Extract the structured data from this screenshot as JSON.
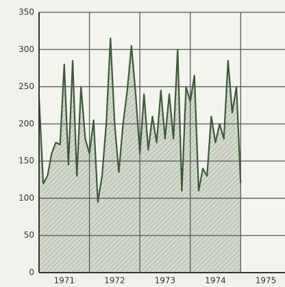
{
  "chart_data": {
    "type": "area",
    "x": [
      1971,
      1971.083,
      1971.167,
      1971.25,
      1971.333,
      1971.417,
      1971.5,
      1971.583,
      1971.667,
      1971.75,
      1971.833,
      1971.917,
      1972,
      1972.083,
      1972.167,
      1972.25,
      1972.333,
      1972.417,
      1972.5,
      1972.583,
      1972.667,
      1972.75,
      1972.833,
      1972.917,
      1973,
      1973.083,
      1973.167,
      1973.25,
      1973.333,
      1973.417,
      1973.5,
      1973.583,
      1973.667,
      1973.75,
      1973.833,
      1973.917,
      1974,
      1974.083,
      1974.167,
      1974.25,
      1974.333,
      1974.417,
      1974.5,
      1974.583,
      1974.667,
      1974.75,
      1974.833,
      1974.917,
      1975
    ],
    "series": [
      {
        "color": "#3d5a38",
        "fill": "#c9d2c2",
        "values": [
          235,
          120,
          130,
          160,
          175,
          172,
          280,
          145,
          285,
          130,
          250,
          180,
          160,
          205,
          95,
          130,
          200,
          315,
          200,
          135,
          200,
          245,
          305,
          240,
          160,
          240,
          165,
          210,
          175,
          245,
          180,
          240,
          180,
          300,
          110,
          250,
          230,
          265,
          110,
          140,
          130,
          210,
          175,
          200,
          180,
          285,
          215,
          250,
          120
        ]
      }
    ],
    "xlim": [
      1971,
      1975.88
    ],
    "xticks": [
      1971,
      1972,
      1973,
      1974,
      1975
    ],
    "ylim": [
      0,
      350
    ],
    "yticks": [
      0,
      50,
      100,
      150,
      200,
      250,
      300,
      350
    ],
    "grid": true
  }
}
